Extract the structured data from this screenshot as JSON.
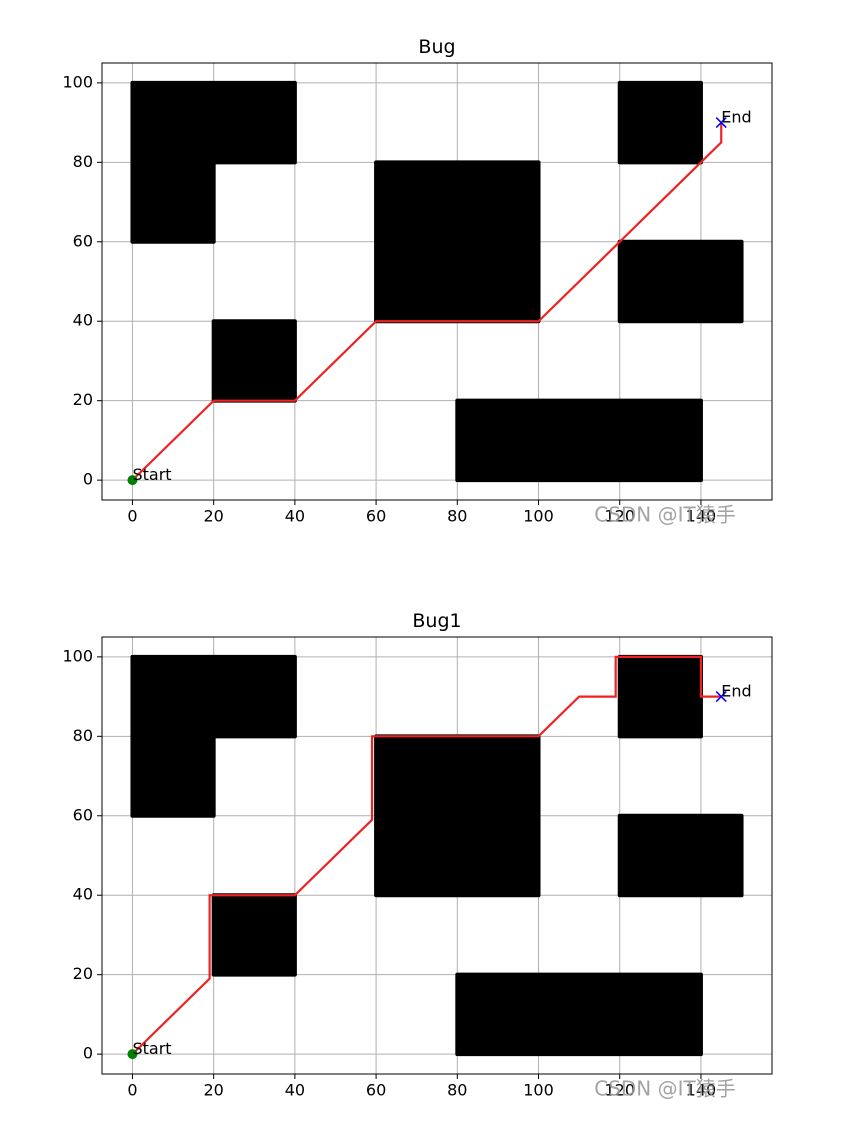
{
  "chart_data": [
    {
      "type": "line",
      "title": "Bug",
      "xlim": [
        -7.5,
        157.5
      ],
      "ylim": [
        -5,
        105
      ],
      "xticks": [
        0,
        20,
        40,
        60,
        80,
        100,
        120,
        140
      ],
      "yticks": [
        0,
        20,
        40,
        60,
        80,
        100
      ],
      "grid": true,
      "obstacle_color": "#000000",
      "obstacles": [
        {
          "x": [
            0,
            40
          ],
          "y": [
            80,
            100
          ]
        },
        {
          "x": [
            0,
            20
          ],
          "y": [
            60,
            80
          ]
        },
        {
          "x": [
            20,
            40
          ],
          "y": [
            20,
            40
          ]
        },
        {
          "x": [
            60,
            100
          ],
          "y": [
            40,
            80
          ]
        },
        {
          "x": [
            80,
            140
          ],
          "y": [
            0,
            20
          ]
        },
        {
          "x": [
            120,
            140
          ],
          "y": [
            80,
            100
          ]
        },
        {
          "x": [
            120,
            150
          ],
          "y": [
            40,
            60
          ]
        }
      ],
      "path": {
        "color": "#ee2222",
        "x": [
          0,
          20,
          40,
          60,
          100,
          145,
          145
        ],
        "y": [
          0,
          20,
          20,
          40,
          40,
          85,
          90
        ]
      },
      "start": {
        "label": "Start",
        "x": 0,
        "y": 0,
        "color": "#008000"
      },
      "end": {
        "label": "End",
        "x": 145,
        "y": 90,
        "color": "#0000ff"
      },
      "watermark": "CSDN @IT猿手"
    },
    {
      "type": "line",
      "title": "Bug1",
      "xlim": [
        -7.5,
        157.5
      ],
      "ylim": [
        -5,
        105
      ],
      "xticks": [
        0,
        20,
        40,
        60,
        80,
        100,
        120,
        140
      ],
      "yticks": [
        0,
        20,
        40,
        60,
        80,
        100
      ],
      "grid": true,
      "obstacle_color": "#000000",
      "obstacles": [
        {
          "x": [
            0,
            40
          ],
          "y": [
            80,
            100
          ]
        },
        {
          "x": [
            0,
            20
          ],
          "y": [
            60,
            80
          ]
        },
        {
          "x": [
            20,
            40
          ],
          "y": [
            20,
            40
          ]
        },
        {
          "x": [
            60,
            100
          ],
          "y": [
            40,
            80
          ]
        },
        {
          "x": [
            80,
            140
          ],
          "y": [
            0,
            20
          ]
        },
        {
          "x": [
            120,
            140
          ],
          "y": [
            80,
            100
          ]
        },
        {
          "x": [
            120,
            150
          ],
          "y": [
            40,
            60
          ]
        }
      ],
      "path": {
        "color": "#ee2222",
        "x": [
          0,
          19,
          19,
          40,
          59,
          59,
          100,
          110,
          119,
          119,
          140,
          140,
          145
        ],
        "y": [
          0,
          19,
          40,
          40,
          59,
          80,
          80,
          90,
          90,
          100,
          100,
          90,
          90
        ]
      },
      "start": {
        "label": "Start",
        "x": 0,
        "y": 0,
        "color": "#008000"
      },
      "end": {
        "label": "End",
        "x": 145,
        "y": 90,
        "color": "#0000ff"
      },
      "watermark": "CSDN @IT猿手"
    }
  ]
}
